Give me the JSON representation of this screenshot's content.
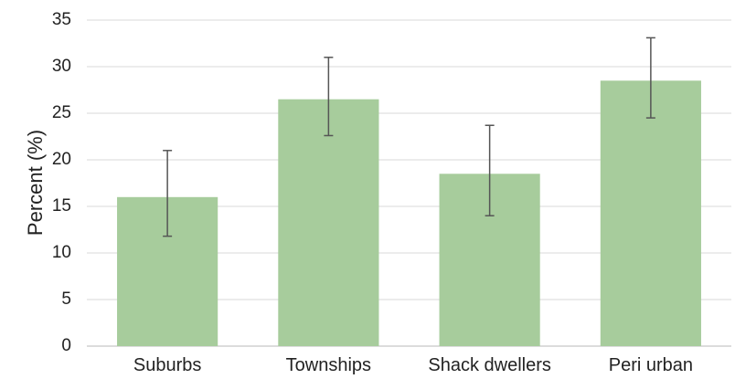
{
  "chart_data": {
    "type": "bar",
    "title": "",
    "xlabel": "",
    "ylabel": "Percent (%)",
    "categories": [
      "Suburbs",
      "Townships",
      "Shack dwellers",
      "Peri urban"
    ],
    "values": [
      16.0,
      26.5,
      18.5,
      28.5
    ],
    "error_low": [
      11.8,
      22.6,
      14.0,
      24.5
    ],
    "error_high": [
      21.0,
      31.0,
      23.7,
      33.1
    ],
    "ylim": [
      0,
      35
    ],
    "yticks": [
      0,
      5,
      10,
      15,
      20,
      25,
      30,
      35
    ],
    "grid": true,
    "legend": "none",
    "colors": {
      "bar": "#a7cc9c",
      "grid": "#d9d9d9",
      "error_bar": "#555555",
      "baseline": "#d0d0d0"
    }
  }
}
